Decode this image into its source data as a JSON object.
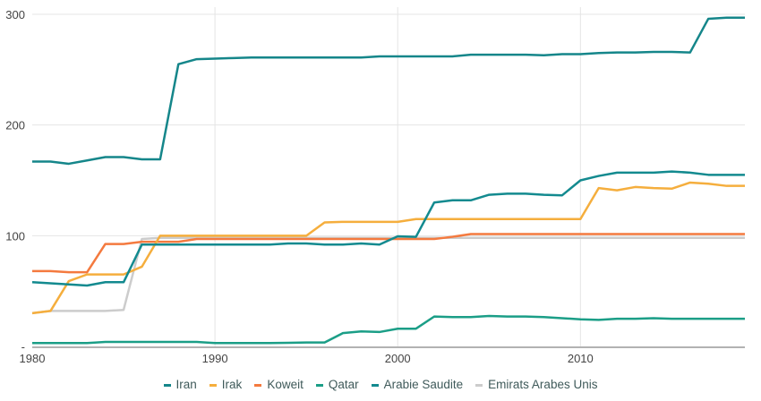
{
  "chart_data": {
    "type": "line",
    "title": "",
    "xlabel": "",
    "ylabel": "",
    "xlim": [
      1980,
      2019
    ],
    "ylim": [
      0,
      300
    ],
    "x_ticks": [
      "1980",
      "1990",
      "2000",
      "2010"
    ],
    "y_ticks": [
      "-",
      "100",
      "200",
      "300"
    ],
    "grid": true,
    "legend_position": "bottom",
    "x": [
      1980,
      1981,
      1982,
      1983,
      1984,
      1985,
      1986,
      1987,
      1988,
      1989,
      1990,
      1991,
      1992,
      1993,
      1994,
      1995,
      1996,
      1997,
      1998,
      1999,
      2000,
      2001,
      2002,
      2003,
      2004,
      2005,
      2006,
      2007,
      2008,
      2009,
      2010,
      2011,
      2012,
      2013,
      2014,
      2015,
      2016,
      2017,
      2018,
      2019
    ],
    "series": [
      {
        "name": "Iran",
        "color": "#15868a",
        "values": [
          167,
          167,
          165,
          168,
          171,
          171,
          169,
          169,
          255,
          259.5,
          260,
          260.5,
          261,
          261,
          261,
          261,
          261,
          261,
          261,
          262,
          262,
          262,
          262,
          262,
          263.5,
          263.5,
          263.5,
          263.5,
          263,
          264,
          264,
          265,
          265.5,
          265.5,
          266,
          266,
          265.5,
          296,
          297,
          297
        ]
      },
      {
        "name": "Irak",
        "color": "#f5ae3d",
        "values": [
          30,
          32,
          59,
          65,
          65,
          65,
          72,
          100,
          100,
          100,
          100,
          100,
          100,
          100,
          100,
          100,
          112,
          112.5,
          112.5,
          112.5,
          112.5,
          115,
          115,
          115,
          115,
          115,
          115,
          115,
          115,
          115,
          115,
          143,
          141,
          144,
          143,
          142.5,
          148,
          147,
          145,
          145
        ]
      },
      {
        "name": "Koweit",
        "color": "#f47a3f",
        "values": [
          68,
          68,
          67,
          67,
          92.5,
          92.5,
          94.5,
          94.5,
          94.5,
          97,
          97,
          97,
          97,
          97,
          97,
          97,
          97,
          97,
          97,
          97,
          97,
          97,
          97,
          99,
          101.5,
          101.5,
          101.5,
          101.5,
          101.5,
          101.5,
          101.5,
          101.5,
          101.5,
          101.5,
          101.5,
          101.5,
          101.5,
          101.5,
          101.5,
          101.5
        ]
      },
      {
        "name": "Qatar",
        "color": "#1b9e87",
        "values": [
          3,
          3,
          3,
          3,
          4,
          4,
          4,
          4,
          4,
          4,
          3,
          3,
          3,
          3,
          3.2,
          3.5,
          3.5,
          12,
          13.5,
          13,
          16,
          16,
          27,
          26.5,
          26.5,
          27.5,
          27,
          27,
          26.5,
          25.5,
          24.5,
          24,
          25,
          25,
          25.5,
          25,
          25,
          25,
          25,
          25
        ]
      },
      {
        "name": "Arabie Saudite",
        "color": "#138a8f",
        "values": [
          58,
          57,
          56,
          55,
          58,
          58,
          92,
          92,
          92,
          92,
          92,
          92,
          92,
          92,
          93,
          93,
          92,
          92,
          93,
          92,
          99.5,
          99,
          130,
          132,
          132,
          137,
          138,
          138,
          137,
          136.5,
          150,
          154,
          157,
          157,
          157,
          158,
          157,
          155,
          155,
          155
        ]
      },
      {
        "name": "Emirats Arabes Unis",
        "color": "#cccccc",
        "values": [
          30,
          32,
          32,
          32,
          32,
          33,
          97,
          98,
          98,
          98,
          98,
          98,
          98,
          98,
          98,
          98,
          98,
          98,
          98,
          98,
          98,
          98,
          98,
          98,
          98,
          98,
          98,
          98,
          98,
          98,
          98,
          98,
          98,
          98,
          98,
          98,
          98,
          98,
          98,
          98
        ]
      }
    ]
  }
}
